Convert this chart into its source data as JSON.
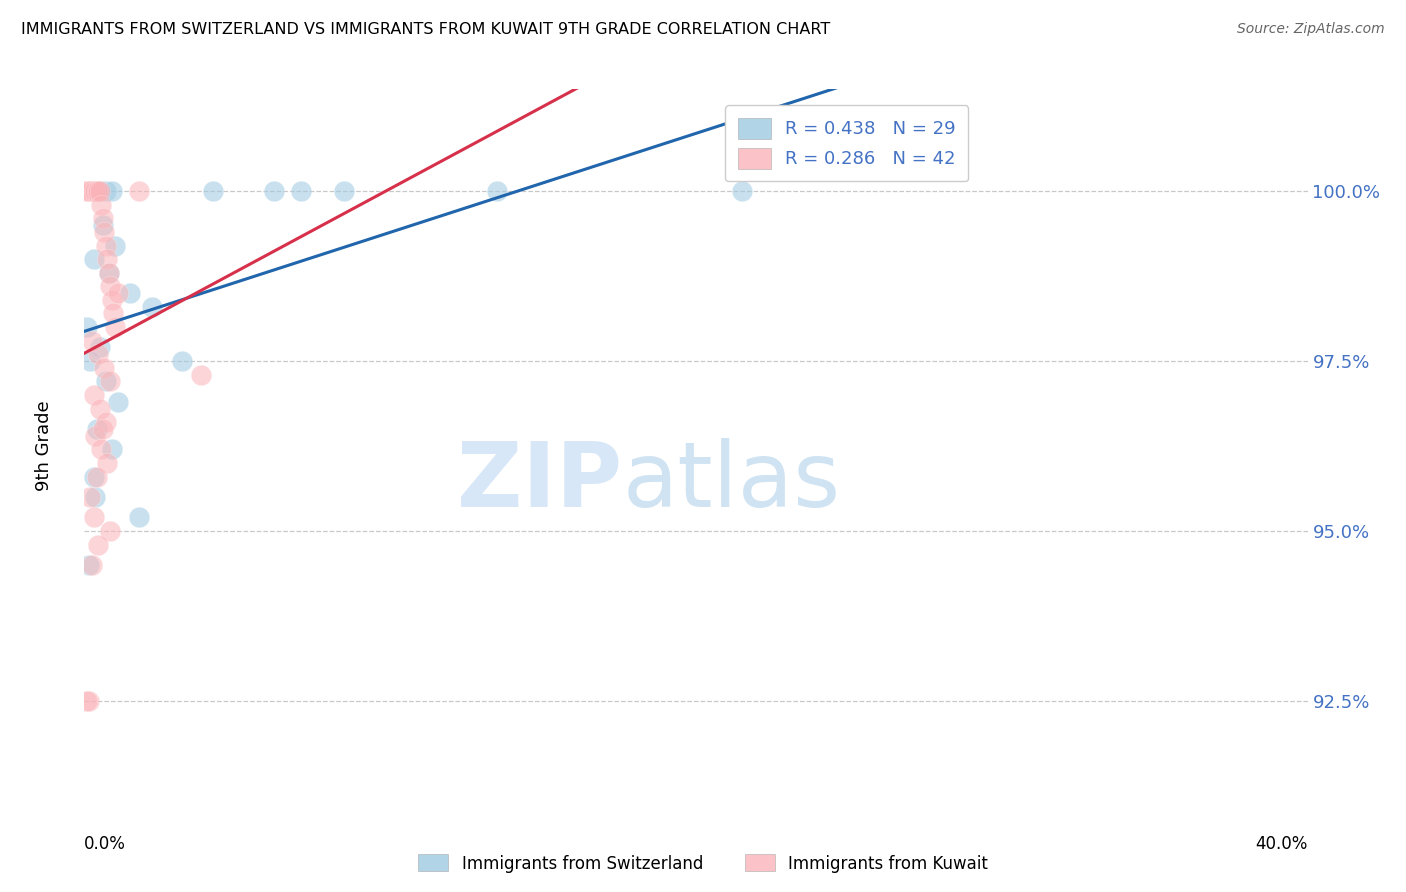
{
  "title": "IMMIGRANTS FROM SWITZERLAND VS IMMIGRANTS FROM KUWAIT 9TH GRADE CORRELATION CHART",
  "source": "Source: ZipAtlas.com",
  "ylabel": "9th Grade",
  "y_ticks": [
    92.5,
    95.0,
    97.5,
    100.0
  ],
  "y_tick_labels": [
    "92.5%",
    "95.0%",
    "97.5%",
    "100.0%"
  ],
  "xlim": [
    0.0,
    40.0
  ],
  "ylim": [
    91.0,
    101.5
  ],
  "legend_blue": "R = 0.438   N = 29",
  "legend_pink": "R = 0.286   N = 42",
  "legend_label_blue": "Immigrants from Switzerland",
  "legend_label_pink": "Immigrants from Kuwait",
  "blue_color": "#9ecae1",
  "pink_color": "#fbb4b9",
  "trendline_blue": "#2166ac",
  "trendline_pink": "#d6304a",
  "switzerland_x": [
    0.2,
    0.4,
    0.5,
    0.7,
    0.9,
    0.6,
    1.0,
    0.3,
    0.8,
    1.5,
    2.2,
    0.1,
    0.5,
    0.2,
    0.7,
    1.1,
    0.4,
    0.9,
    4.2,
    6.2,
    7.1,
    8.5,
    13.5,
    21.5,
    0.3,
    0.35,
    1.8,
    3.2,
    0.15
  ],
  "switzerland_y": [
    100.0,
    100.0,
    100.0,
    100.0,
    100.0,
    99.5,
    99.2,
    99.0,
    98.8,
    98.5,
    98.3,
    98.0,
    97.7,
    97.5,
    97.2,
    96.9,
    96.5,
    96.2,
    100.0,
    100.0,
    100.0,
    100.0,
    100.0,
    100.0,
    95.8,
    95.5,
    95.2,
    97.5,
    94.5
  ],
  "kuwait_x": [
    0.05,
    0.1,
    0.15,
    0.2,
    0.25,
    0.3,
    0.35,
    0.4,
    0.45,
    0.5,
    0.55,
    0.6,
    0.65,
    0.7,
    0.75,
    0.8,
    0.85,
    0.9,
    0.95,
    1.0,
    0.25,
    0.45,
    0.65,
    0.85,
    0.3,
    0.5,
    0.7,
    1.8,
    0.35,
    0.55,
    0.75,
    0.4,
    3.8,
    0.2,
    0.3,
    1.1,
    0.6,
    0.85,
    0.45,
    0.25,
    0.15,
    0.1
  ],
  "kuwait_y": [
    100.0,
    100.0,
    100.0,
    100.0,
    100.0,
    100.0,
    100.0,
    100.0,
    100.0,
    100.0,
    99.8,
    99.6,
    99.4,
    99.2,
    99.0,
    98.8,
    98.6,
    98.4,
    98.2,
    98.0,
    97.8,
    97.6,
    97.4,
    97.2,
    97.0,
    96.8,
    96.6,
    100.0,
    96.4,
    96.2,
    96.0,
    95.8,
    97.3,
    95.5,
    95.2,
    98.5,
    96.5,
    95.0,
    94.8,
    94.5,
    92.5,
    92.5
  ]
}
